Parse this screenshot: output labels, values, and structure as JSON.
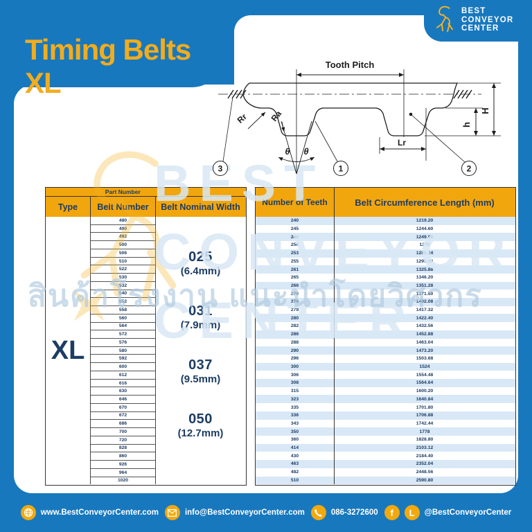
{
  "header": {
    "title": "Timing Belts XL",
    "logo": {
      "line1": "BEST",
      "line2": "CONVEYOR",
      "line3": "CENTER"
    }
  },
  "diagram": {
    "tooth_pitch": "Tooth Pitch",
    "rr": "Rr",
    "ra": "Ra",
    "theta_left": "θ",
    "theta_right": "θ",
    "lr": "Lr",
    "h_small": "h",
    "h_big": "H",
    "callout_1": "1",
    "callout_2": "2",
    "callout_3": "3"
  },
  "table": {
    "part_number_header": "Part Number",
    "columns": {
      "type": "Type",
      "belt_number": "Belt Number",
      "belt_nominal_width": "Belt Nominal Width",
      "number_of_teeth": "Number of Teeth",
      "belt_circumference": "Belt Circumference Length (mm)"
    },
    "type_value": "XL",
    "widths": [
      {
        "code": "025",
        "mm": "(6.4mm)"
      },
      {
        "code": "031",
        "mm": "(7.9mm)"
      },
      {
        "code": "037",
        "mm": "(9.5mm)"
      },
      {
        "code": "050",
        "mm": "(12.7mm)"
      }
    ],
    "rows": [
      {
        "belt": "480",
        "teeth": "240",
        "length": "1219.20"
      },
      {
        "belt": "490",
        "teeth": "245",
        "length": "1244.60"
      },
      {
        "belt": "492",
        "teeth": "246",
        "length": "1249.68"
      },
      {
        "belt": "500",
        "teeth": "250",
        "length": "1270"
      },
      {
        "belt": "506",
        "teeth": "253",
        "length": "1285.24"
      },
      {
        "belt": "510",
        "teeth": "255",
        "length": "1295.40"
      },
      {
        "belt": "522",
        "teeth": "261",
        "length": "1325.88"
      },
      {
        "belt": "530",
        "teeth": "265",
        "length": "1346.20"
      },
      {
        "belt": "532",
        "teeth": "266",
        "length": "1351.28"
      },
      {
        "belt": "540",
        "teeth": "270",
        "length": "1371.60"
      },
      {
        "belt": "552",
        "teeth": "276",
        "length": "1402.08"
      },
      {
        "belt": "558",
        "teeth": "279",
        "length": "1417.32"
      },
      {
        "belt": "560",
        "teeth": "280",
        "length": "1422.40"
      },
      {
        "belt": "564",
        "teeth": "282",
        "length": "1432.56"
      },
      {
        "belt": "572",
        "teeth": "286",
        "length": "1452.88"
      },
      {
        "belt": "576",
        "teeth": "288",
        "length": "1463.04"
      },
      {
        "belt": "580",
        "teeth": "290",
        "length": "1473.20"
      },
      {
        "belt": "592",
        "teeth": "296",
        "length": "1503.68"
      },
      {
        "belt": "600",
        "teeth": "300",
        "length": "1524"
      },
      {
        "belt": "612",
        "teeth": "306",
        "length": "1554.48"
      },
      {
        "belt": "616",
        "teeth": "308",
        "length": "1564.64"
      },
      {
        "belt": "630",
        "teeth": "315",
        "length": "1600.20"
      },
      {
        "belt": "646",
        "teeth": "323",
        "length": "1640.84"
      },
      {
        "belt": "670",
        "teeth": "335",
        "length": "1701.80"
      },
      {
        "belt": "672",
        "teeth": "336",
        "length": "1706.88"
      },
      {
        "belt": "686",
        "teeth": "343",
        "length": "1742.44"
      },
      {
        "belt": "700",
        "teeth": "350",
        "length": "1778"
      },
      {
        "belt": "720",
        "teeth": "360",
        "length": "1828.80"
      },
      {
        "belt": "828",
        "teeth": "414",
        "length": "2103.12"
      },
      {
        "belt": "860",
        "teeth": "430",
        "length": "2184.40"
      },
      {
        "belt": "926",
        "teeth": "463",
        "length": "2352.04"
      },
      {
        "belt": "964",
        "teeth": "482",
        "length": "2448.56"
      },
      {
        "belt": "1020",
        "teeth": "510",
        "length": "2590.80"
      }
    ]
  },
  "watermark": {
    "thai": "สินค้าโรงงาน แนะนำโดยวิศวกร",
    "line1": "BEST",
    "line2": "CONVEYOR",
    "line3": "CENTER"
  },
  "footer": {
    "website": "www.BestConveyorCenter.com",
    "email": "info@BestConveyorCenter.com",
    "phone": "086-3272600",
    "social": "@BestConveyorCenter",
    "facebook_glyph": "f",
    "line_glyph": "L"
  },
  "colors": {
    "blue": "#1878BE",
    "orange": "#F2A60D",
    "navy": "#1C3C64",
    "title_yellow": "#F2AC1D",
    "stripe": "#B9D5EE",
    "logo_yellow": "#F6B323"
  }
}
